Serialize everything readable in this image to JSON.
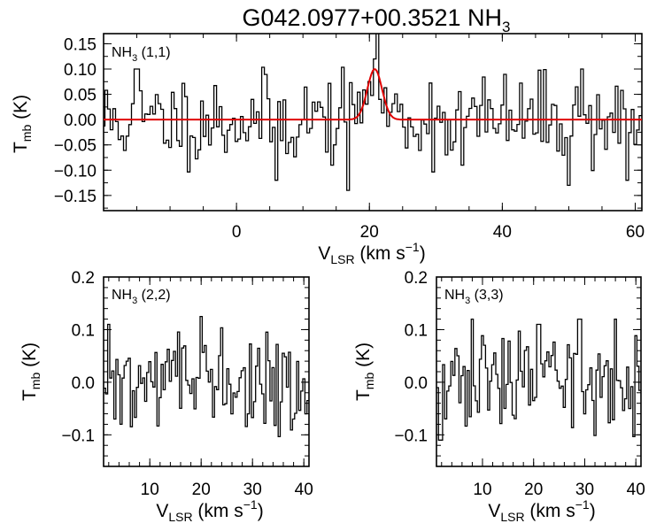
{
  "chart_data": {
    "title": {
      "source": "G042.0977+00.3521",
      "line": "NH",
      "sub": "3"
    },
    "colors": {
      "axes": "#000000",
      "spectrum": "#000000",
      "fit": "#e00000"
    },
    "panels": [
      {
        "id": "nh3-11",
        "type": "line",
        "label": {
          "main": "NH",
          "sub": "3",
          "rest": " (1,1)"
        },
        "xlim": [
          -20,
          61
        ],
        "ylim": [
          -0.18,
          0.17
        ],
        "xticks": [
          {
            "value": 0,
            "label": "0"
          },
          {
            "value": 20,
            "label": "20"
          },
          {
            "value": 40,
            "label": "40"
          },
          {
            "value": 60,
            "label": "60"
          }
        ],
        "yticks": [
          {
            "value": -0.15,
            "label": "−0.15"
          },
          {
            "value": -0.1,
            "label": "−0.10"
          },
          {
            "value": -0.05,
            "label": "−0.05"
          },
          {
            "value": 0.0,
            "label": "0.00"
          },
          {
            "value": 0.05,
            "label": "0.05"
          },
          {
            "value": 0.1,
            "label": "0.10"
          },
          {
            "value": 0.15,
            "label": "0.15"
          }
        ],
        "xminor": 5,
        "yminor": 0.025,
        "xlabel": {
          "main": "V",
          "sub": "LSR",
          "rest": " (km s",
          "sup": "−1",
          "close": ")"
        },
        "ylabel": {
          "main": "T",
          "sub": "mb",
          "rest": " (K)"
        },
        "spectrum": {
          "x0": -20,
          "dx": 0.4,
          "seed": 11,
          "noise": 0.045,
          "spikes": [
            [
              -15.0,
              0.1
            ],
            [
              6.0,
              -0.12
            ],
            [
              17.0,
              -0.14
            ],
            [
              21.0,
              0.12
            ],
            [
              34.0,
              -0.09
            ],
            [
              50.0,
              -0.13
            ],
            [
              52.0,
              0.1
            ],
            [
              59.0,
              -0.12
            ]
          ]
        },
        "fit": {
          "amplitude": 0.1,
          "center": 20.8,
          "sigma": 1.1
        }
      },
      {
        "id": "nh3-22",
        "type": "line",
        "label": {
          "main": "NH",
          "sub": "3",
          "rest": " (2,2)"
        },
        "xlim": [
          1,
          41
        ],
        "ylim": [
          -0.16,
          0.2
        ],
        "xticks": [
          {
            "value": 10,
            "label": "10"
          },
          {
            "value": 20,
            "label": "20"
          },
          {
            "value": 30,
            "label": "30"
          },
          {
            "value": 40,
            "label": "40"
          }
        ],
        "yticks": [
          {
            "value": -0.1,
            "label": "−0.1"
          },
          {
            "value": 0.0,
            "label": "0.0"
          },
          {
            "value": 0.1,
            "label": "0.1"
          },
          {
            "value": 0.2,
            "label": "0.2"
          }
        ],
        "xminor": 2,
        "yminor": 0.02,
        "xlabel": {
          "main": "V",
          "sub": "LSR",
          "rest": " (km s",
          "sup": "−1",
          "close": ")"
        },
        "ylabel": {
          "main": "T",
          "sub": "mb",
          "rest": " (K)"
        },
        "spectrum": {
          "x0": 1.2,
          "dx": 0.4,
          "seed": 22,
          "noise": 0.045,
          "spikes": [
            [
              2.0,
              0.11
            ],
            [
              3.2,
              -0.07
            ],
            [
              4.4,
              -0.08
            ],
            [
              20.0,
              0.125
            ],
            [
              26.0,
              -0.06
            ],
            [
              38.0,
              -0.07
            ],
            [
              40.4,
              -0.06
            ]
          ]
        }
      },
      {
        "id": "nh3-33",
        "type": "line",
        "label": {
          "main": "NH",
          "sub": "3",
          "rest": " (3,3)"
        },
        "xlim": [
          1,
          41
        ],
        "ylim": [
          -0.16,
          0.2
        ],
        "xticks": [
          {
            "value": 10,
            "label": "10"
          },
          {
            "value": 20,
            "label": "20"
          },
          {
            "value": 30,
            "label": "30"
          },
          {
            "value": 40,
            "label": "40"
          }
        ],
        "yticks": [
          {
            "value": -0.1,
            "label": "−0.1"
          },
          {
            "value": 0.0,
            "label": "0.0"
          },
          {
            "value": 0.1,
            "label": "0.1"
          },
          {
            "value": 0.2,
            "label": "0.2"
          }
        ],
        "xminor": 2,
        "yminor": 0.02,
        "xlabel": {
          "main": "V",
          "sub": "LSR",
          "rest": " (km s",
          "sup": "−1",
          "close": ")"
        },
        "ylabel": {
          "main": "T",
          "sub": "mb",
          "rest": " (K)"
        },
        "spectrum": {
          "x0": 1.2,
          "dx": 0.4,
          "seed": 33,
          "noise": 0.045,
          "spikes": [
            [
              1.6,
              0.12
            ],
            [
              1.8,
              -0.11
            ],
            [
              8.0,
              0.12
            ],
            [
              21.0,
              0.11
            ],
            [
              29.0,
              0.12
            ],
            [
              30.0,
              -0.06
            ],
            [
              36.0,
              0.12
            ],
            [
              39.0,
              -0.05
            ]
          ]
        }
      }
    ]
  }
}
